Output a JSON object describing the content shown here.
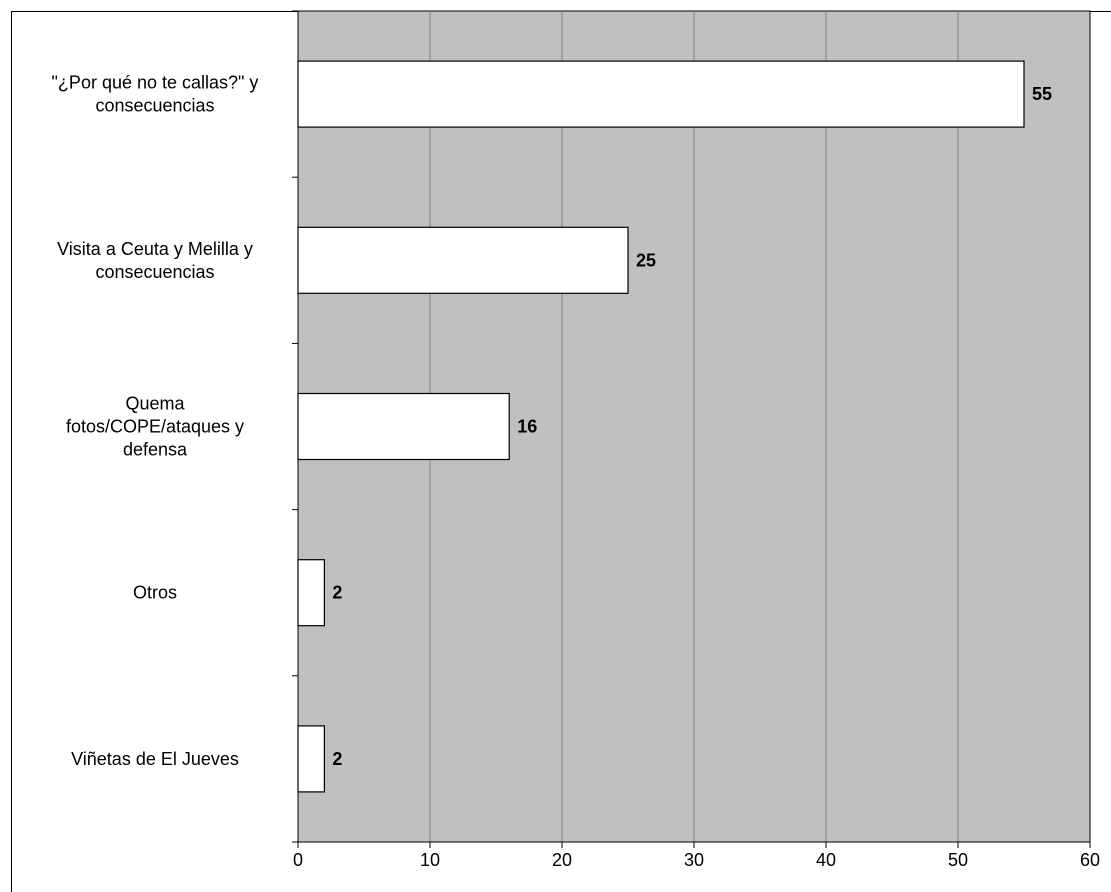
{
  "chart_data": {
    "type": "bar",
    "orientation": "horizontal",
    "title": "",
    "xlabel": "",
    "ylabel": "",
    "categories": [
      [
        "\"¿Por qué no te callas?\" y",
        "consecuencias"
      ],
      [
        "Visita a Ceuta y Melilla y",
        "consecuencias"
      ],
      [
        "Quema",
        "fotos/COPE/ataques y",
        "defensa"
      ],
      [
        "Otros"
      ],
      [
        "Viñetas de El Jueves"
      ]
    ],
    "values": [
      55,
      25,
      16,
      2,
      2
    ],
    "data_labels": [
      "55",
      "25",
      "16",
      "2",
      "2"
    ],
    "xlim": [
      0,
      60
    ],
    "xticks": [
      "0",
      "10",
      "20",
      "30",
      "40",
      "50",
      "60"
    ],
    "grid": "vertical",
    "legend": "none",
    "colors": {
      "plot_background": "#c0c0c0",
      "bar_fill": "#ffffff",
      "bar_stroke": "#000000",
      "gridline": "#808080"
    }
  }
}
